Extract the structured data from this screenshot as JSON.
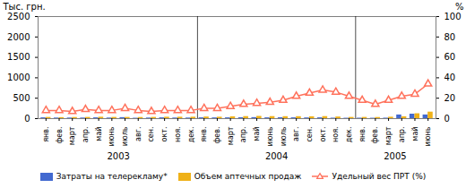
{
  "chart_data": {
    "type": "bar",
    "categories": [
      "янв.",
      "фев.",
      "март",
      "апр.",
      "май",
      "июнь",
      "июль",
      "авг.",
      "сен.",
      "окт.",
      "ноя.",
      "дек.",
      "янв.",
      "фев.",
      "март",
      "апр.",
      "май",
      "июнь",
      "июль",
      "авг.",
      "сен.",
      "окт.",
      "ноя.",
      "дек.",
      "янв.",
      "фев.",
      "март",
      "апр.",
      "май",
      "июнь"
    ],
    "series": [
      {
        "name": "Затраты на телерекламу*",
        "type": "bar",
        "values": [
          20,
          15,
          15,
          15,
          20,
          15,
          25,
          10,
          15,
          20,
          15,
          15,
          20,
          18,
          20,
          22,
          25,
          20,
          22,
          20,
          18,
          20,
          12,
          10,
          12,
          10,
          12,
          90,
          110,
          90
        ]
      },
      {
        "name": "Объем аптечных продаж",
        "type": "bar",
        "values": [
          30,
          25,
          28,
          30,
          35,
          30,
          30,
          28,
          30,
          35,
          35,
          35,
          40,
          35,
          45,
          50,
          55,
          50,
          48,
          48,
          45,
          50,
          40,
          30,
          30,
          28,
          35,
          45,
          120,
          160
        ]
      },
      {
        "name": "Удельный вес ПРТ (%)",
        "type": "line",
        "axis": "y2",
        "marker": "triangle",
        "values": [
          8,
          8,
          7,
          9,
          8,
          8,
          10,
          8,
          7,
          8,
          8,
          8,
          10,
          10,
          12,
          14,
          15,
          16,
          18,
          22,
          25,
          28,
          26,
          22,
          18,
          14,
          18,
          22,
          24,
          34
        ]
      }
    ],
    "ylabel": "Тыс. грн.",
    "y2label": "%",
    "ylim": [
      0,
      2500
    ],
    "yticks": [
      0,
      500,
      1000,
      1500,
      2000,
      2500
    ],
    "y2lim": [
      0,
      100
    ],
    "y2ticks": [
      0,
      20,
      40,
      60,
      80,
      100
    ],
    "annotations": [
      {
        "text": "2003",
        "from": 0,
        "to": 11
      },
      {
        "text": "2004",
        "from": 12,
        "to": 23
      },
      {
        "text": "2005",
        "from": 24,
        "to": 29
      }
    ],
    "grid": false,
    "legend": "bottom"
  }
}
